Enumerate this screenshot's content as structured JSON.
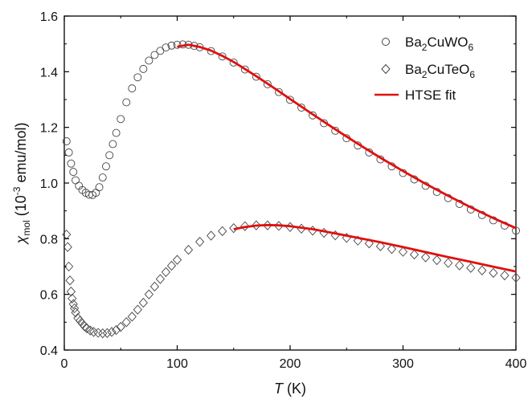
{
  "chart_data": {
    "type": "scatter",
    "xlabel": {
      "italic": "T",
      "rest": " (K)"
    },
    "ylabel": {
      "chi": "χ",
      "sub": "mol",
      "mid": " (10",
      "sup": "-3",
      "rest": " emu/mol)"
    },
    "xlim": [
      0,
      400
    ],
    "ylim": [
      0.4,
      1.6
    ],
    "xticks": [
      0,
      100,
      200,
      300,
      400
    ],
    "yticks": [
      0.4,
      0.6,
      0.8,
      1.0,
      1.2,
      1.4,
      1.6
    ],
    "xtick_labels": [
      "0",
      "100",
      "200",
      "300",
      "400"
    ],
    "ytick_labels": [
      "0.4",
      "0.6",
      "0.8",
      "1.0",
      "1.2",
      "1.4",
      "1.6"
    ],
    "grid": false,
    "legend_position": "top-right",
    "legend": [
      {
        "series": "Ba2CuWO6",
        "text": {
          "a": "Ba",
          "b": "2",
          "c": "CuWO",
          "d": "6"
        },
        "marker": "circle"
      },
      {
        "series": "Ba2CuTeO6",
        "text": {
          "a": "Ba",
          "b": "2",
          "c": "CuTeO",
          "d": "6"
        },
        "marker": "diamond"
      },
      {
        "series": "HTSE fit",
        "text": {
          "a": "HTSE fit",
          "b": "",
          "c": "",
          "d": ""
        },
        "marker": "line"
      }
    ],
    "colors": {
      "markers": "#444444",
      "fit": "#e01010",
      "axes": "#000000"
    },
    "series": [
      {
        "name": "Ba2CuWO6",
        "marker": "circle",
        "x": [
          2,
          4,
          6,
          8,
          10,
          13,
          16,
          19,
          22,
          25,
          28,
          31,
          34,
          37,
          40,
          43,
          46,
          50,
          55,
          60,
          65,
          70,
          75,
          80,
          85,
          90,
          95,
          100,
          105,
          110,
          115,
          120,
          130,
          140,
          150,
          160,
          170,
          180,
          190,
          200,
          210,
          220,
          230,
          240,
          250,
          260,
          270,
          280,
          290,
          300,
          310,
          320,
          330,
          340,
          350,
          360,
          370,
          380,
          390,
          400
        ],
        "y": [
          1.15,
          1.11,
          1.07,
          1.04,
          1.01,
          0.99,
          0.975,
          0.965,
          0.958,
          0.957,
          0.965,
          0.985,
          1.02,
          1.06,
          1.1,
          1.14,
          1.18,
          1.23,
          1.29,
          1.34,
          1.38,
          1.41,
          1.44,
          1.46,
          1.475,
          1.487,
          1.494,
          1.497,
          1.498,
          1.497,
          1.493,
          1.488,
          1.474,
          1.455,
          1.433,
          1.408,
          1.382,
          1.355,
          1.327,
          1.299,
          1.271,
          1.243,
          1.215,
          1.188,
          1.161,
          1.135,
          1.11,
          1.085,
          1.06,
          1.036,
          1.013,
          0.99,
          0.968,
          0.946,
          0.925,
          0.905,
          0.885,
          0.866,
          0.847,
          0.829
        ]
      },
      {
        "name": "Ba2CuTeO6",
        "marker": "diamond",
        "x": [
          2,
          3,
          4,
          5,
          6,
          7,
          8,
          9,
          10,
          12,
          14,
          16,
          18,
          20,
          23,
          26,
          30,
          34,
          38,
          42,
          46,
          50,
          55,
          60,
          65,
          70,
          75,
          80,
          85,
          90,
          95,
          100,
          110,
          120,
          130,
          140,
          150,
          160,
          170,
          180,
          190,
          200,
          210,
          220,
          230,
          240,
          250,
          260,
          270,
          280,
          290,
          300,
          310,
          320,
          330,
          340,
          350,
          360,
          370,
          380,
          390,
          400
        ],
        "y": [
          0.815,
          0.77,
          0.7,
          0.65,
          0.61,
          0.585,
          0.565,
          0.55,
          0.535,
          0.515,
          0.505,
          0.495,
          0.485,
          0.478,
          0.47,
          0.465,
          0.462,
          0.46,
          0.461,
          0.465,
          0.472,
          0.483,
          0.5,
          0.52,
          0.545,
          0.57,
          0.6,
          0.628,
          0.655,
          0.68,
          0.703,
          0.724,
          0.76,
          0.789,
          0.811,
          0.827,
          0.838,
          0.845,
          0.848,
          0.848,
          0.846,
          0.842,
          0.836,
          0.829,
          0.821,
          0.812,
          0.803,
          0.793,
          0.783,
          0.773,
          0.763,
          0.753,
          0.743,
          0.733,
          0.723,
          0.713,
          0.704,
          0.695,
          0.686,
          0.677,
          0.668,
          0.66
        ]
      },
      {
        "name": "HTSE fit",
        "marker": "line",
        "segments": [
          {
            "x": [
              100,
              110,
              120,
              130,
              140,
              150,
              160,
              170,
              180,
              190,
              200,
              220,
              240,
              260,
              280,
              300,
              320,
              340,
              360,
              380,
              400
            ],
            "y": [
              1.49,
              1.497,
              1.489,
              1.476,
              1.457,
              1.435,
              1.41,
              1.384,
              1.357,
              1.33,
              1.302,
              1.247,
              1.193,
              1.141,
              1.091,
              1.043,
              0.997,
              0.954,
              0.913,
              0.874,
              0.838
            ]
          },
          {
            "x": [
              150,
              160,
              170,
              180,
              190,
              200,
              220,
              240,
              260,
              280,
              300,
              320,
              340,
              360,
              380,
              400
            ],
            "y": [
              0.834,
              0.842,
              0.847,
              0.849,
              0.848,
              0.845,
              0.834,
              0.819,
              0.803,
              0.787,
              0.77,
              0.752,
              0.734,
              0.717,
              0.699,
              0.682
            ]
          }
        ]
      }
    ]
  }
}
